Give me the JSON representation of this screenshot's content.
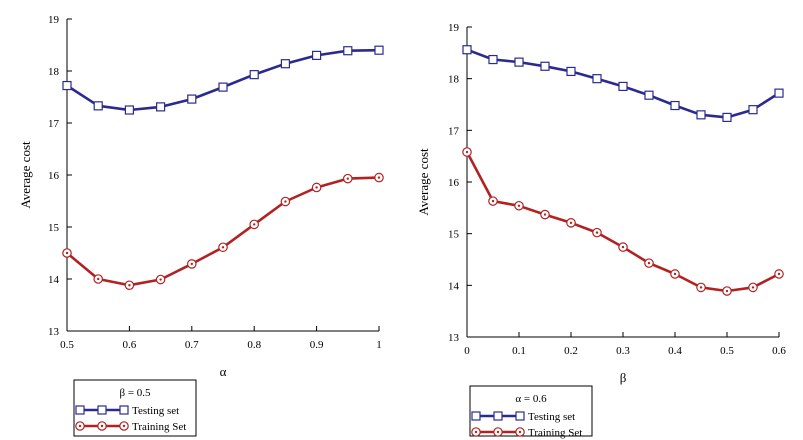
{
  "chart_data": [
    {
      "type": "line",
      "xlabel": "α",
      "ylabel": "Average cost",
      "xlim": [
        0.5,
        1
      ],
      "ylim": [
        13,
        19
      ],
      "xticks": [
        "0.5",
        "0.6",
        "0.7",
        "0.8",
        "0.9",
        "1"
      ],
      "yticks": [
        "13",
        "14",
        "15",
        "16",
        "17",
        "18",
        "19"
      ],
      "x": [
        0.5,
        0.55,
        0.6,
        0.65,
        0.7,
        0.75,
        0.8,
        0.85,
        0.9,
        0.95,
        1.0
      ],
      "series": [
        {
          "name": "Testing set",
          "color": "#2b2b8f",
          "marker": "square",
          "values": [
            17.72,
            17.33,
            17.25,
            17.31,
            17.46,
            17.69,
            17.93,
            18.14,
            18.3,
            18.39,
            18.4
          ]
        },
        {
          "name": "Training Set",
          "color": "#b22222",
          "marker": "circle",
          "values": [
            14.5,
            14.0,
            13.88,
            13.99,
            14.29,
            14.61,
            15.05,
            15.49,
            15.76,
            15.93,
            15.95
          ]
        }
      ],
      "legend": {
        "title": "β = 0.5",
        "placement": "bottom-left"
      }
    },
    {
      "type": "line",
      "xlabel": "β",
      "ylabel": "Average cost",
      "xlim": [
        0,
        0.6
      ],
      "ylim": [
        13,
        19
      ],
      "xticks": [
        "0",
        "0.1",
        "0.2",
        "0.3",
        "0.4",
        "0.5",
        "0.6"
      ],
      "yticks": [
        "13",
        "14",
        "15",
        "16",
        "17",
        "18",
        "19"
      ],
      "x": [
        0,
        0.05,
        0.1,
        0.15,
        0.2,
        0.25,
        0.3,
        0.35,
        0.4,
        0.45,
        0.5,
        0.55,
        0.6
      ],
      "series": [
        {
          "name": "Testing set",
          "color": "#2b2b8f",
          "marker": "square",
          "values": [
            18.56,
            18.37,
            18.32,
            18.24,
            18.14,
            18.0,
            17.85,
            17.68,
            17.48,
            17.3,
            17.25,
            17.4,
            17.72
          ]
        },
        {
          "name": "Training Set",
          "color": "#b22222",
          "marker": "circle",
          "values": [
            16.58,
            15.63,
            15.54,
            15.37,
            15.21,
            15.02,
            14.74,
            14.43,
            14.22,
            13.96,
            13.89,
            13.96,
            14.22
          ]
        }
      ],
      "legend": {
        "title": "α = 0.6",
        "placement": "bottom-left"
      }
    }
  ]
}
